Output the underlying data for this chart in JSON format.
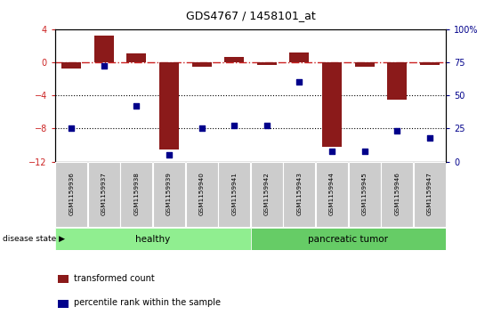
{
  "title": "GDS4767 / 1458101_at",
  "samples": [
    "GSM1159936",
    "GSM1159937",
    "GSM1159938",
    "GSM1159939",
    "GSM1159940",
    "GSM1159941",
    "GSM1159942",
    "GSM1159943",
    "GSM1159944",
    "GSM1159945",
    "GSM1159946",
    "GSM1159947"
  ],
  "red_bars": [
    -0.8,
    3.2,
    1.1,
    -10.5,
    -0.5,
    0.6,
    -0.3,
    1.2,
    -10.2,
    -0.5,
    -4.5,
    -0.3
  ],
  "blue_dots": [
    25,
    72,
    42,
    5,
    25,
    27,
    27,
    60,
    8,
    8,
    23,
    18
  ],
  "ylim_left": [
    -12,
    4
  ],
  "ylim_right": [
    0,
    100
  ],
  "yticks_left": [
    -12,
    -8,
    -4,
    0,
    4
  ],
  "yticks_right": [
    0,
    25,
    50,
    75,
    100
  ],
  "bar_color": "#8B1A1A",
  "dot_color": "#00008B",
  "hline_color": "#CC2222",
  "dotline_color": "#000000",
  "healthy_color": "#90EE90",
  "tumor_color": "#66CC66",
  "n_healthy": 6,
  "n_tumor": 6,
  "healthy_label": "healthy",
  "tumor_label": "pancreatic tumor",
  "disease_state_label": "disease state",
  "legend_bar_label": "transformed count",
  "legend_dot_label": "percentile rank within the sample",
  "bg_color": "#FFFFFF",
  "label_bg_color": "#CCCCCC"
}
